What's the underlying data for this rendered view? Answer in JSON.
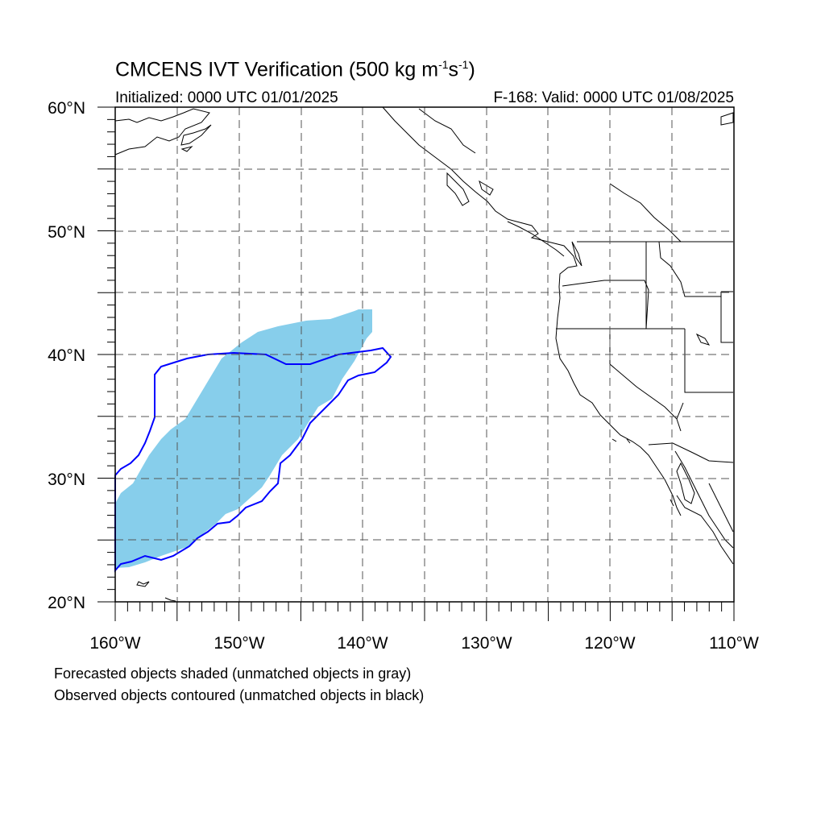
{
  "title": {
    "main": "CMCENS IVT Verification (500 kg m",
    "sup1": "-1",
    "mid": "s",
    "sup2": "-1",
    "end": ")"
  },
  "subtitle": {
    "initialized": "Initialized: 0000 UTC 01/01/2025",
    "valid": "F-168: Valid: 0000 UTC 01/08/2025"
  },
  "map": {
    "lon_range": [
      -160,
      -110
    ],
    "lat_range": [
      20,
      60
    ],
    "lon_labels": [
      "160°W",
      "150°W",
      "140°W",
      "130°W",
      "120°W",
      "110°W"
    ],
    "lat_labels": [
      "20°N",
      "30°N",
      "40°N",
      "50°N",
      "60°N"
    ],
    "forecast_color": "#87ceeb",
    "observed_color": "#0000ff",
    "grid_style": "dashed"
  },
  "footnotes": {
    "line1": "Forecasted objects shaded (unmatched objects in gray)",
    "line2": "Observed objects contoured (unmatched objects in black)"
  }
}
